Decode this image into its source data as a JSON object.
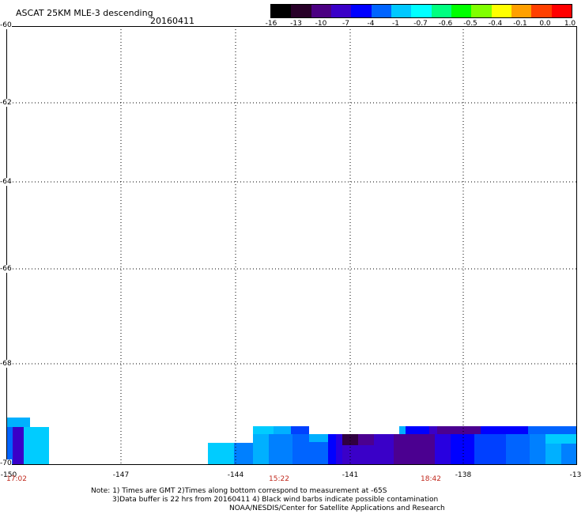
{
  "header": {
    "title": "ASCAT 25KM MLE-3 descending",
    "date": "20160411"
  },
  "colorbar": {
    "labels": [
      "-16",
      "-13",
      "-10",
      "-7",
      "-4",
      "-1",
      "-0.7",
      "-0.6",
      "-0.5",
      "-0.4",
      "-0.1",
      "0.0",
      "1.0"
    ],
    "colors": [
      "#000000",
      "#280028",
      "#4b0082",
      "#3a00c8",
      "#0000ff",
      "#0064ff",
      "#00c8ff",
      "#00ffff",
      "#00ff80",
      "#00ff00",
      "#80ff00",
      "#ffff00",
      "#ffa000",
      "#ff4000",
      "#ff0000"
    ]
  },
  "map": {
    "lat_labels": [
      "-60",
      "-62",
      "-64",
      "-66",
      "-68",
      "-70"
    ],
    "lon_labels": [
      "-150",
      "-147",
      "-144",
      "-141",
      "-138",
      "-13"
    ],
    "time_labels": [
      "17:02",
      "15:22",
      "18:42"
    ],
    "cell_colors": {
      "c1": "#00ccff",
      "c2": "#00b0ff",
      "c3": "#0080ff",
      "c4": "#0064ff",
      "c5": "#0040ff",
      "c6": "#0000ff",
      "c7": "#2800e0",
      "c8": "#3a00c8",
      "c9": "#4b0090",
      "c10": "#300040"
    }
  },
  "notes": {
    "line1": "Note: 1) Times are GMT 2)Times along bottom correspond to measurement at -65S",
    "line2": "3)Data buffer is 22 hrs from 20160411 4) Black wind barbs indicate possible contamination",
    "line3": "NOAA/NESDIS/Center for Satellite Applications and Research"
  }
}
